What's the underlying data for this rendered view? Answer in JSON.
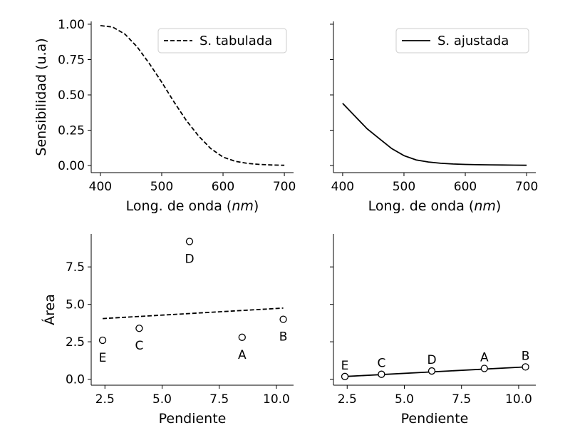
{
  "chart_data": [
    {
      "type": "line",
      "panel": "top-left",
      "xlabel": "Long. de onda (nm)",
      "xlabel_prefix": "Long. de onda (",
      "xlabel_italic": "nm",
      "xlabel_suffix": ")",
      "ylabel": "Sensibilidad (u.a)",
      "xlim": [
        385,
        715
      ],
      "ylim": [
        -0.05,
        1.02
      ],
      "xticks": [
        400,
        500,
        600,
        700
      ],
      "yticks": [
        0.0,
        0.25,
        0.5,
        0.75,
        1.0
      ],
      "ytick_labels": [
        "0.00",
        "0.25",
        "0.50",
        "0.75",
        "1.00"
      ],
      "legend": "top-right",
      "series": [
        {
          "name": "S. tabulada",
          "style": "dashed",
          "x": [
            400,
            420,
            440,
            460,
            480,
            500,
            520,
            540,
            560,
            580,
            600,
            620,
            640,
            660,
            680,
            700
          ],
          "y": [
            0.99,
            0.98,
            0.93,
            0.84,
            0.72,
            0.59,
            0.45,
            0.32,
            0.21,
            0.12,
            0.06,
            0.03,
            0.015,
            0.008,
            0.004,
            0.002
          ]
        }
      ]
    },
    {
      "type": "line",
      "panel": "top-right",
      "xlabel": "Long. de onda (nm)",
      "xlabel_prefix": "Long. de onda (",
      "xlabel_italic": "nm",
      "xlabel_suffix": ")",
      "ylabel": "",
      "xlim": [
        385,
        715
      ],
      "ylim": [
        -0.05,
        1.02
      ],
      "xticks": [
        400,
        500,
        600,
        700
      ],
      "yticks": [
        0.0,
        0.25,
        0.5,
        0.75,
        1.0
      ],
      "legend": "top-right",
      "series": [
        {
          "name": "S. ajustada",
          "style": "solid",
          "x": [
            400,
            420,
            440,
            460,
            480,
            500,
            520,
            540,
            560,
            580,
            600,
            620,
            640,
            660,
            680,
            700
          ],
          "y": [
            0.44,
            0.35,
            0.26,
            0.19,
            0.12,
            0.07,
            0.04,
            0.025,
            0.016,
            0.011,
            0.008,
            0.006,
            0.005,
            0.004,
            0.003,
            0.002
          ]
        }
      ]
    },
    {
      "type": "scatter",
      "panel": "bottom-left",
      "xlabel": "Pendiente",
      "ylabel": "Área",
      "xlim": [
        1.9,
        10.75
      ],
      "ylim": [
        -0.4,
        9.7
      ],
      "xticks": [
        2.5,
        5.0,
        7.5,
        10.0
      ],
      "xtick_labels": [
        "2.5",
        "5.0",
        "7.5",
        "10.0"
      ],
      "yticks": [
        0.0,
        2.5,
        5.0,
        7.5
      ],
      "ytick_labels": [
        "0.0",
        "2.5",
        "5.0",
        "7.5"
      ],
      "points": [
        {
          "label": "E",
          "x": 2.4,
          "y": 2.6
        },
        {
          "label": "C",
          "x": 4.0,
          "y": 3.4
        },
        {
          "label": "D",
          "x": 6.2,
          "y": 9.2
        },
        {
          "label": "A",
          "x": 8.5,
          "y": 2.8
        },
        {
          "label": "B",
          "x": 10.3,
          "y": 4.0
        }
      ],
      "fit": {
        "style": "dashed",
        "x": [
          2.4,
          10.3
        ],
        "y": [
          4.05,
          4.75
        ]
      }
    },
    {
      "type": "scatter",
      "panel": "bottom-right",
      "xlabel": "Pendiente",
      "ylabel": "",
      "xlim": [
        1.9,
        10.75
      ],
      "ylim": [
        -0.4,
        9.7
      ],
      "xticks": [
        2.5,
        5.0,
        7.5,
        10.0
      ],
      "xtick_labels": [
        "2.5",
        "5.0",
        "7.5",
        "10.0"
      ],
      "yticks": [
        0.0,
        2.5,
        5.0,
        7.5
      ],
      "points": [
        {
          "label": "E",
          "x": 2.4,
          "y": 0.18
        },
        {
          "label": "C",
          "x": 4.0,
          "y": 0.33
        },
        {
          "label": "D",
          "x": 6.2,
          "y": 0.55
        },
        {
          "label": "A",
          "x": 8.5,
          "y": 0.72
        },
        {
          "label": "B",
          "x": 10.3,
          "y": 0.82
        }
      ],
      "fit": {
        "style": "solid",
        "x": [
          2.4,
          10.3
        ],
        "y": [
          0.18,
          0.82
        ]
      }
    }
  ]
}
